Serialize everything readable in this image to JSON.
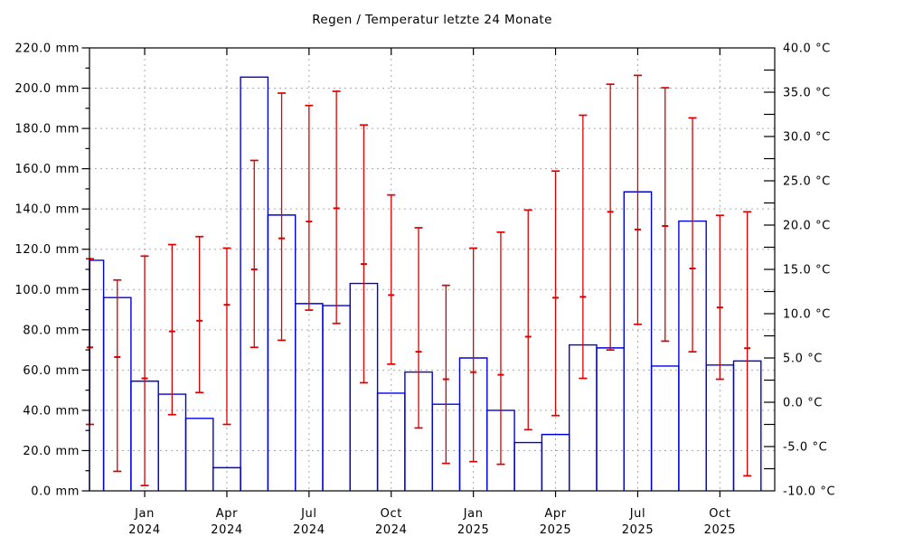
{
  "chart_data": {
    "type": "bar+errorbar",
    "title": "Regen / Temperatur letzte 24 Monate",
    "legend_position": "none",
    "grid": {
      "enabled": true,
      "color": "#aaaaaa",
      "horizontal_every_mm": 20,
      "vertical_at": "quarter month centers"
    },
    "left_axis": {
      "label_unit": "mm",
      "min": 0,
      "max": 220,
      "label_step": 20,
      "minor_tick_step": 10,
      "format_decimals": 1
    },
    "right_axis": {
      "label_unit": "°C",
      "min": -10,
      "max": 40,
      "label_step": 5,
      "minor_tick_step": 2.5,
      "format_decimals": 1
    },
    "series": [
      {
        "name": "Regen",
        "type": "bar",
        "color": "#0000dd"
      },
      {
        "name": "Temperatur (Min/Mittel/Max)",
        "type": "errorbar",
        "color": "#dd0000"
      }
    ],
    "x_labeled_months": [
      "Jan 2024",
      "Apr 2024",
      "Jul 2024",
      "Oct 2024",
      "Jan 2025",
      "Apr 2025",
      "Jul 2025",
      "Oct 2025"
    ],
    "months": [
      {
        "label": "Nov 2023",
        "partial": true,
        "rain_mm": 114.5,
        "tmax": 16.2,
        "tmean": 6.2,
        "tmin": -2.5
      },
      {
        "label": "Dec 2023",
        "partial": false,
        "rain_mm": 96.0,
        "tmax": 13.8,
        "tmean": 5.1,
        "tmin": -7.8
      },
      {
        "label": "Jan 2024",
        "partial": false,
        "rain_mm": 54.5,
        "tmax": 16.5,
        "tmean": 2.7,
        "tmin": -9.4
      },
      {
        "label": "Feb 2024",
        "partial": false,
        "rain_mm": 48.0,
        "tmax": 17.8,
        "tmean": 8.0,
        "tmin": -1.4
      },
      {
        "label": "Mar 2024",
        "partial": false,
        "rain_mm": 36.0,
        "tmax": 18.7,
        "tmean": 9.2,
        "tmin": 1.1
      },
      {
        "label": "Apr 2024",
        "partial": false,
        "rain_mm": 11.5,
        "tmax": 17.4,
        "tmean": 11.0,
        "tmin": -2.5
      },
      {
        "label": "May 2024",
        "partial": false,
        "rain_mm": 205.5,
        "tmax": 27.3,
        "tmean": 15.0,
        "tmin": 6.2
      },
      {
        "label": "Jun 2024",
        "partial": false,
        "rain_mm": 137.0,
        "tmax": 34.9,
        "tmean": 18.5,
        "tmin": 7.0
      },
      {
        "label": "Jul 2024",
        "partial": false,
        "rain_mm": 93.0,
        "tmax": 33.5,
        "tmean": 20.4,
        "tmin": 10.4
      },
      {
        "label": "Aug 2024",
        "partial": false,
        "rain_mm": 92.0,
        "tmax": 35.1,
        "tmean": 21.9,
        "tmin": 8.9
      },
      {
        "label": "Sep 2024",
        "partial": false,
        "rain_mm": 103.0,
        "tmax": 31.3,
        "tmean": 15.6,
        "tmin": 2.2
      },
      {
        "label": "Oct 2024",
        "partial": false,
        "rain_mm": 48.5,
        "tmax": 23.4,
        "tmean": 12.1,
        "tmin": 4.3
      },
      {
        "label": "Nov 2024",
        "partial": false,
        "rain_mm": 59.0,
        "tmax": 19.7,
        "tmean": 5.7,
        "tmin": -2.9
      },
      {
        "label": "Dec 2024",
        "partial": false,
        "rain_mm": 43.0,
        "tmax": 13.2,
        "tmean": 2.6,
        "tmin": -6.9
      },
      {
        "label": "Jan 2025",
        "partial": false,
        "rain_mm": 66.0,
        "tmax": 17.4,
        "tmean": 3.4,
        "tmin": -6.7
      },
      {
        "label": "Feb 2025",
        "partial": false,
        "rain_mm": 40.0,
        "tmax": 19.2,
        "tmean": 3.1,
        "tmin": -7.0
      },
      {
        "label": "Mar 2025",
        "partial": false,
        "rain_mm": 24.0,
        "tmax": 21.7,
        "tmean": 7.4,
        "tmin": -3.1
      },
      {
        "label": "Apr 2025",
        "partial": false,
        "rain_mm": 28.0,
        "tmax": 26.1,
        "tmean": 11.8,
        "tmin": -1.5
      },
      {
        "label": "May 2025",
        "partial": false,
        "rain_mm": 72.5,
        "tmax": 32.4,
        "tmean": 11.9,
        "tmin": 2.7
      },
      {
        "label": "Jun 2025",
        "partial": false,
        "rain_mm": 71.0,
        "tmax": 35.9,
        "tmean": 21.5,
        "tmin": 5.9
      },
      {
        "label": "Jul 2025",
        "partial": false,
        "rain_mm": 148.5,
        "tmax": 36.9,
        "tmean": 19.5,
        "tmin": 8.8
      },
      {
        "label": "Aug 2025",
        "partial": false,
        "rain_mm": 62.0,
        "tmax": 35.5,
        "tmean": 19.9,
        "tmin": 6.9
      },
      {
        "label": "Sep 2025",
        "partial": false,
        "rain_mm": 134.0,
        "tmax": 32.1,
        "tmean": 15.1,
        "tmin": 5.7
      },
      {
        "label": "Oct 2025",
        "partial": false,
        "rain_mm": 62.5,
        "tmax": 21.1,
        "tmean": 10.7,
        "tmin": 2.6
      },
      {
        "label": "Nov 2025",
        "partial": false,
        "rain_mm": 64.5,
        "tmax": 21.5,
        "tmean": 6.1,
        "tmin": -8.3
      }
    ]
  }
}
